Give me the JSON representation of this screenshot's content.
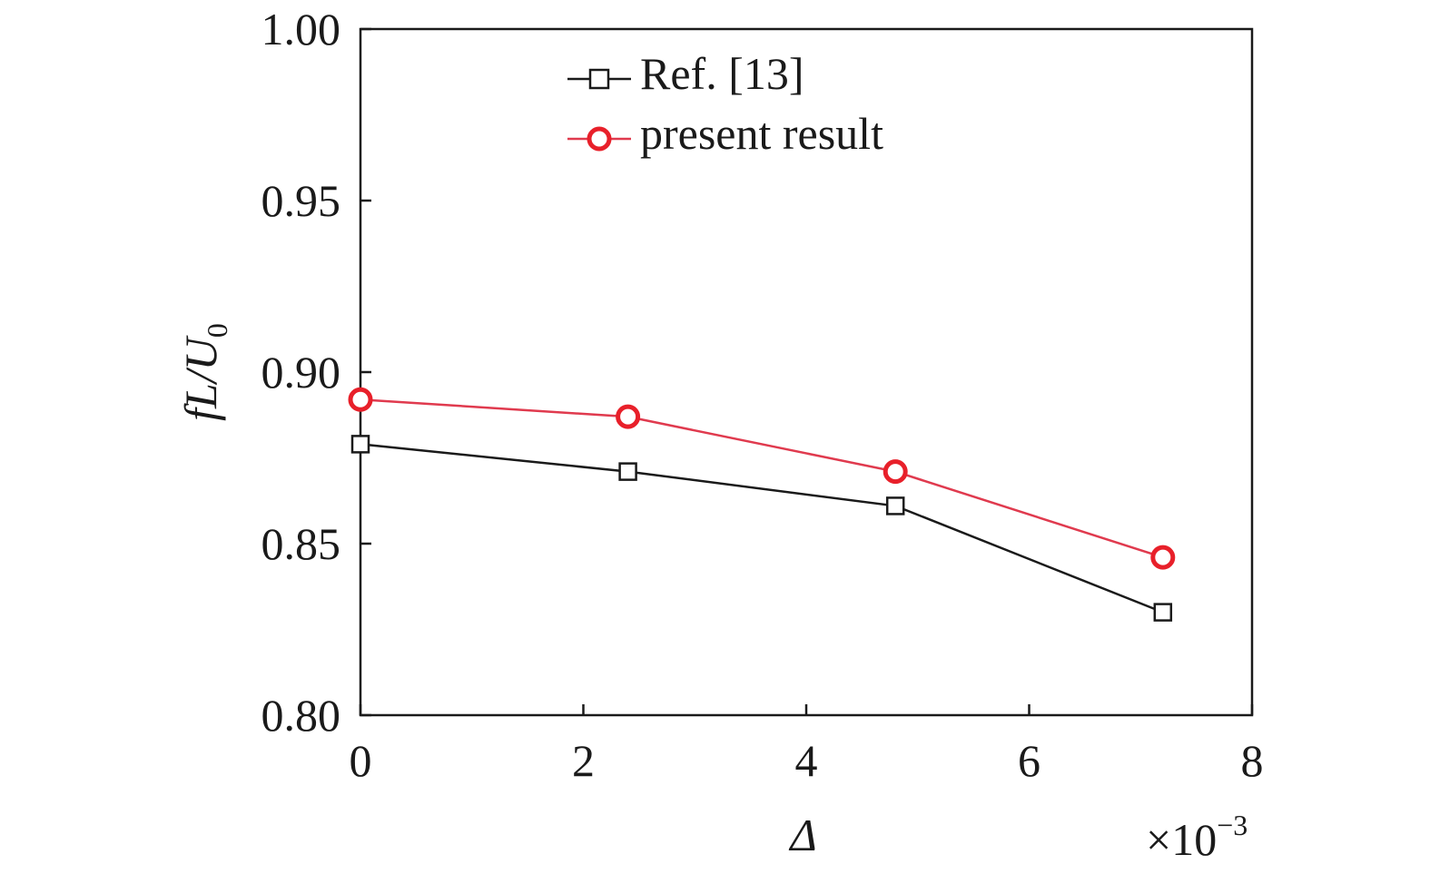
{
  "chart_data": {
    "type": "line",
    "xlabel": "Δ",
    "ylabel": {
      "main": "fL/U",
      "sub": "0"
    },
    "x_multiplier": {
      "base": "×10",
      "exponent": "−3"
    },
    "xlim": [
      0,
      8
    ],
    "ylim": [
      0.8,
      1.0
    ],
    "x_ticks": [
      0,
      2,
      4,
      6,
      8
    ],
    "x_tick_labels": [
      "0",
      "2",
      "4",
      "6",
      "8"
    ],
    "y_ticks": [
      0.8,
      0.85,
      0.9,
      0.95,
      1.0
    ],
    "y_tick_labels": [
      "0.80",
      "0.85",
      "0.90",
      "0.95",
      "1.00"
    ],
    "grid": false,
    "legend_position": "top-center",
    "series": [
      {
        "name": "Ref. [13]",
        "color": "#1a1a1a",
        "marker": "square",
        "x": [
          0,
          2.4,
          4.8,
          7.2
        ],
        "y": [
          0.879,
          0.871,
          0.861,
          0.83
        ]
      },
      {
        "name": "present result",
        "color": "#e03a4e",
        "marker": "circle",
        "marker_color": "#e8202a",
        "x": [
          0,
          2.4,
          4.8,
          7.2
        ],
        "y": [
          0.892,
          0.887,
          0.871,
          0.846
        ]
      }
    ]
  }
}
